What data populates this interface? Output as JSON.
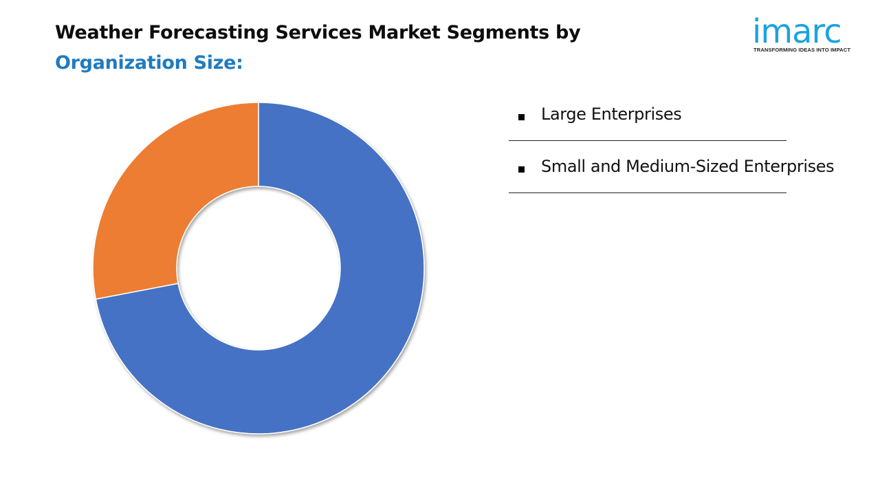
{
  "header": {
    "title_line1": "Weather Forecasting Services Market Segments by",
    "title_line2": "Organization Size:"
  },
  "logo": {
    "wordmark": "imarc",
    "tagline": "TRANSFORMING IDEAS INTO IMPACT"
  },
  "colors": {
    "large_enterprises": "#4472c4",
    "smes": "#ed7d31",
    "title_accent": "#1f7bc0",
    "logo": "#1aa3de"
  },
  "legend": {
    "items": [
      {
        "label": "Large Enterprises"
      },
      {
        "label": "Small and Medium-Sized Enterprises"
      }
    ]
  },
  "chart_data": {
    "type": "pie",
    "style": "donut",
    "categories": [
      "Large Enterprises",
      "Small and Medium-Sized Enterprises"
    ],
    "values": [
      72,
      28
    ],
    "unit": "%",
    "legend_position": "right"
  }
}
